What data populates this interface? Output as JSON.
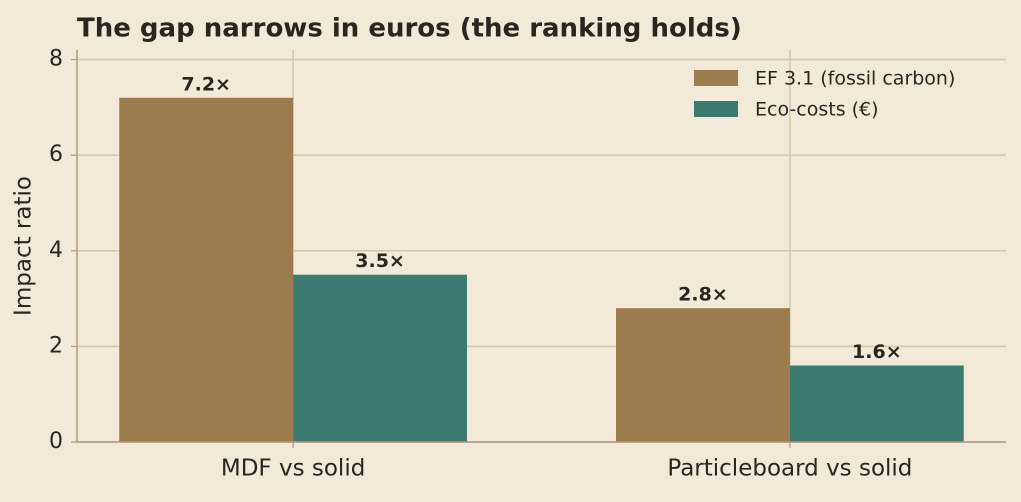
{
  "chart_data": {
    "type": "bar",
    "title": "The gap narrows in euros (the ranking holds)",
    "ylabel": "Impact ratio",
    "categories": [
      "MDF vs solid",
      "Particleboard vs solid"
    ],
    "series": [
      {
        "name": "EF 3.1 (fossil carbon)",
        "color": "#9c7b4f",
        "values": [
          7.2,
          2.8
        ],
        "value_labels": [
          "7.2×",
          "2.8×"
        ]
      },
      {
        "name": "Eco-costs (€)",
        "color": "#3d7a72",
        "values": [
          3.5,
          1.6
        ],
        "value_labels": [
          "3.5×",
          "1.6×"
        ]
      }
    ],
    "ylim": [
      0,
      8.2
    ],
    "yticks": [
      0,
      2,
      4,
      6,
      8
    ],
    "grid": true,
    "legend": "upper right"
  }
}
